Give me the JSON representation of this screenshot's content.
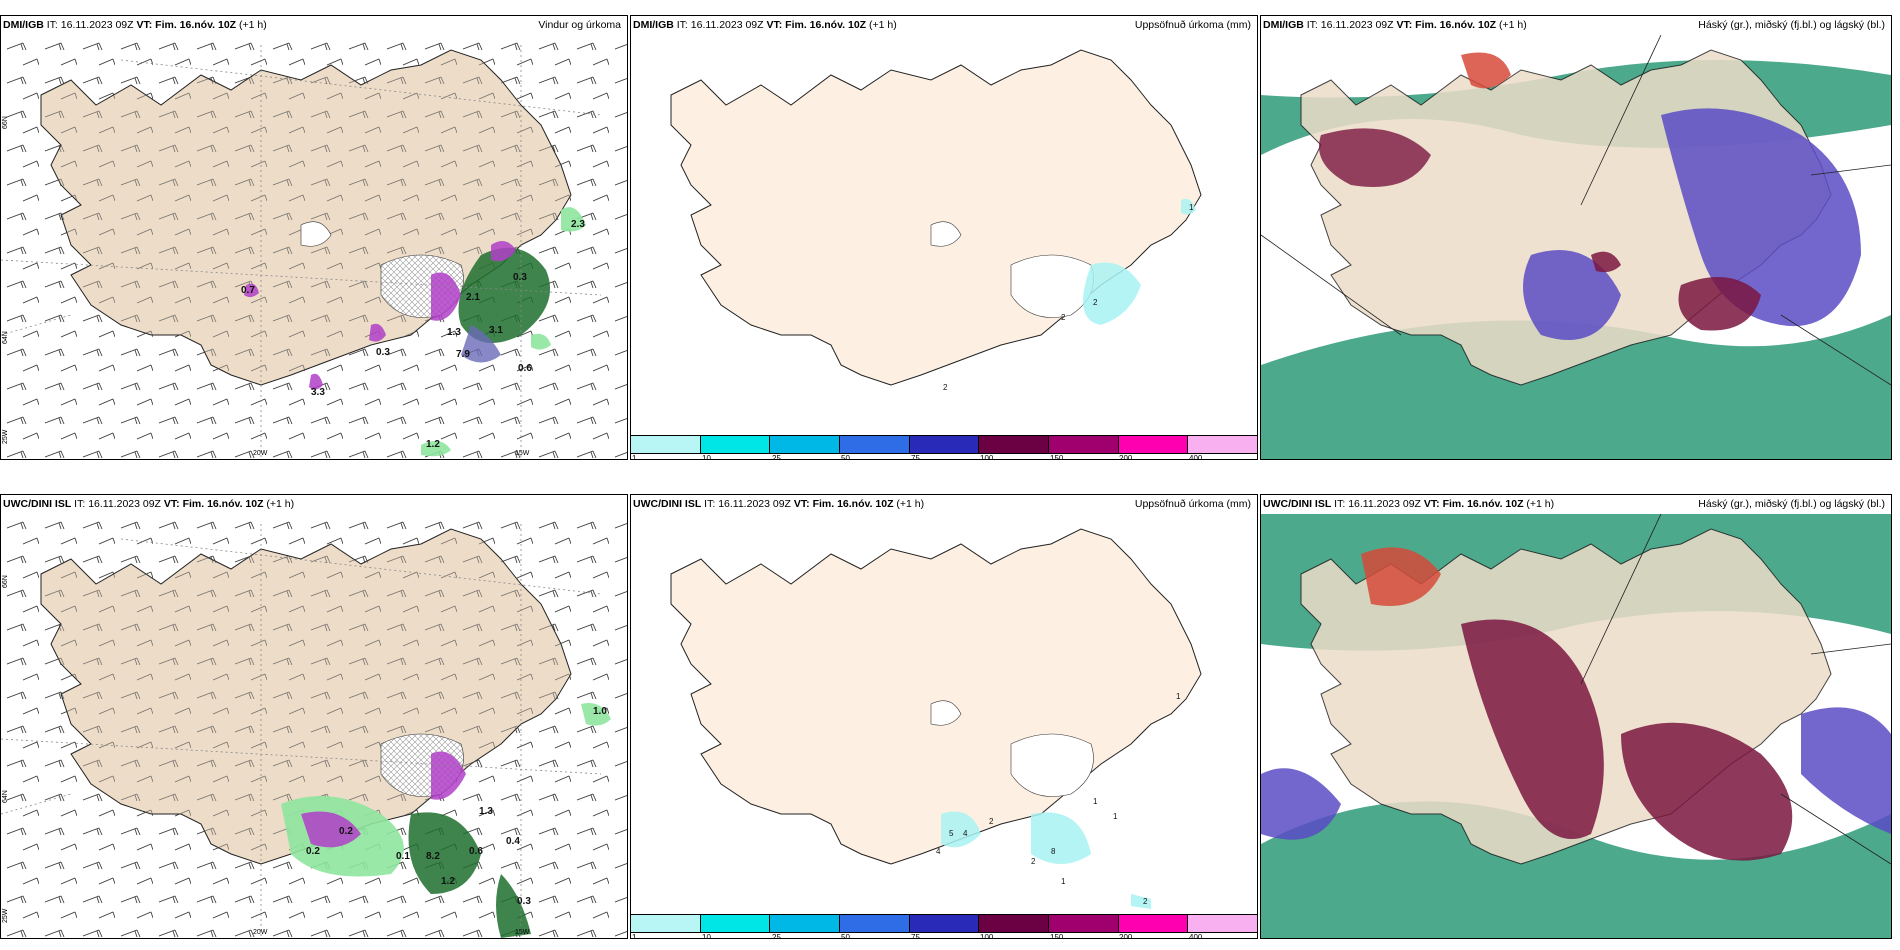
{
  "panels": [
    {
      "source": "DMI/IGB",
      "it_label": "IT:",
      "it": "16.11.2023 09Z",
      "vt_label": "VT:",
      "vt": "Fim. 16.nóv. 10Z",
      "lead": "(+1 h)",
      "product": "Vindur og úrkoma"
    },
    {
      "source": "DMI/IGB",
      "it_label": "IT:",
      "it": "16.11.2023 09Z",
      "vt_label": "VT:",
      "vt": "Fim. 16.nóv. 10Z",
      "lead": "(+1 h)",
      "product": "Uppsöfnuð úrkoma (mm)"
    },
    {
      "source": "DMI/IGB",
      "it_label": "IT:",
      "it": "16.11.2023 09Z",
      "vt_label": "VT:",
      "vt": "Fim. 16.nóv. 10Z",
      "lead": "(+1 h)",
      "product": "Háský (gr.), miðský (fj.bl.) og lágský (bl.)"
    },
    {
      "source": "UWC/DINI ISL",
      "it_label": "IT:",
      "it": "16.11.2023 09Z",
      "vt_label": "VT:",
      "vt": "Fim. 16.nóv. 10Z",
      "lead": "(+1 h)",
      "product": "Uppsöfnuð úrkoma (mm)"
    },
    {
      "source": "UWC/DINI ISL",
      "it_label": "IT:",
      "it": "16.11.2023 09Z",
      "vt_label": "VT:",
      "vt": "Fim. 16.nóv. 10Z",
      "lead": "(+1 h)",
      "product": "Háský (gr.), miðský (fj.bl.) og lágský (bl.)"
    },
    {
      "source": "UWC/DINI ISL",
      "it_label": "IT:",
      "it": "16.11.2023 09Z",
      "vt_label": "VT:",
      "vt": "Fim. 16.nóv. 10Z",
      "lead": "(+1 h)",
      "product": "Vindur og úrkoma"
    }
  ],
  "grid_labels": {
    "lat66": "66N",
    "lat64": "64N",
    "lon25": "25W",
    "lon20": "20W",
    "lon15": "15W"
  },
  "wind_precip_labels_top": [
    "0.7",
    "7.9",
    "3.1",
    "0.6",
    "3.3",
    "1.2",
    "2.3",
    "0.3",
    "2.1",
    "1.3",
    "0.3"
  ],
  "wind_precip_labels_bottom": [
    "0.2",
    "8.2",
    "0.6",
    "1.0",
    "1.2",
    "0.2",
    "1.3",
    "0.1",
    "0.4",
    "0.3"
  ],
  "accum_labels_top": [
    "2",
    "2",
    "2",
    "1"
  ],
  "accum_labels_bottom": [
    "5",
    "4",
    "2",
    "4",
    "2",
    "1",
    "2",
    "1",
    "1",
    "1",
    "8"
  ],
  "colorbar": {
    "ticks": [
      "1",
      "10",
      "25",
      "50",
      "75",
      "100",
      "150",
      "200",
      "400"
    ],
    "colors": [
      "#b8f5f5",
      "#00e5e5",
      "#00b8e6",
      "#2f6de6",
      "#2a2ab8",
      "#6b0042",
      "#a0006e",
      "#ff00b0",
      "#f8b0f0"
    ]
  },
  "colors": {
    "land": "#ecdcc8",
    "land_light": "#fdf0e2",
    "green": "#1e6e2e",
    "green_light": "#8fe69f",
    "purple": "#b03fc8",
    "cloud_high": "#2e9a78",
    "cloud_mid": "#5a4bc4",
    "cloud_low": "#7a1640",
    "cyan": "#a8f2f2"
  }
}
